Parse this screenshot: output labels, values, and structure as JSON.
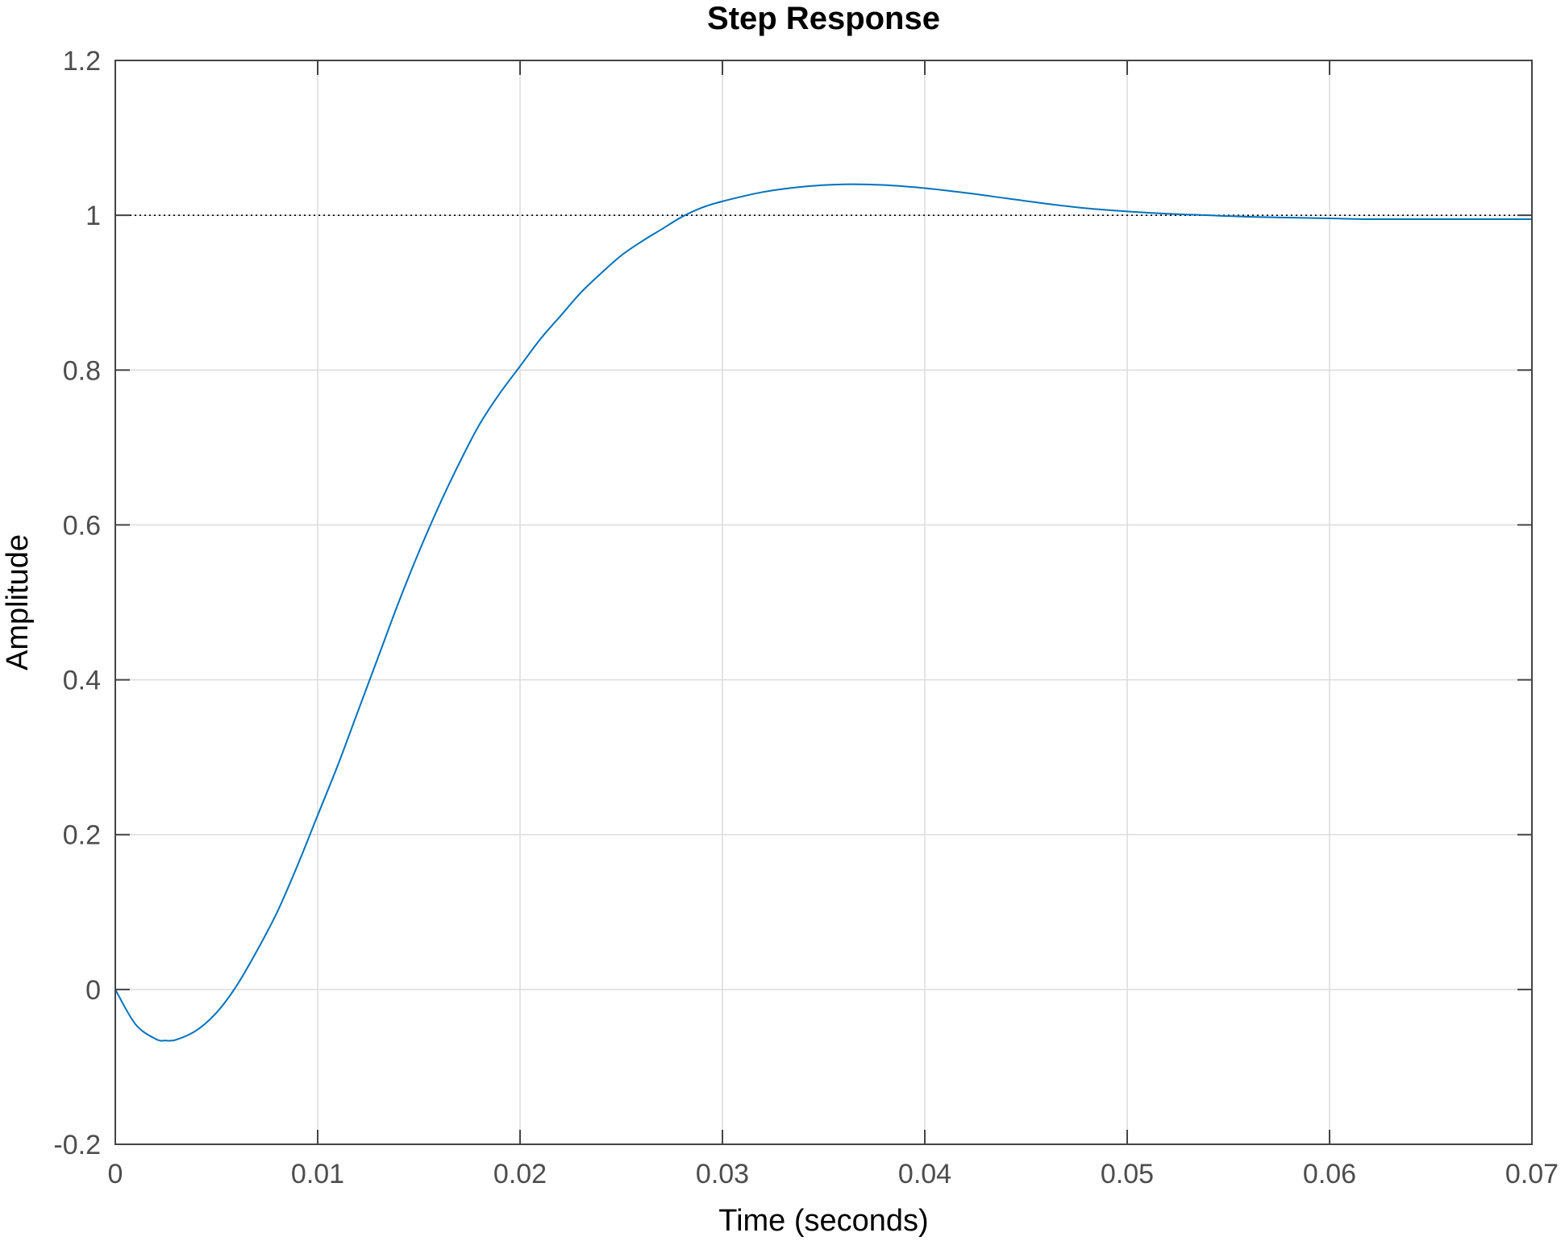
{
  "chart_data": {
    "type": "line",
    "title": "Step Response",
    "xlabel": "Time (seconds)",
    "ylabel": "Amplitude",
    "xlim": [
      0,
      0.07
    ],
    "ylim": [
      -0.2,
      1.2
    ],
    "xticks": [
      0,
      0.01,
      0.02,
      0.03,
      0.04,
      0.05,
      0.06,
      0.07
    ],
    "xtick_labels": [
      "0",
      "0.01",
      "0.02",
      "0.03",
      "0.04",
      "0.05",
      "0.06",
      "0.07"
    ],
    "yticks": [
      -0.2,
      0,
      0.2,
      0.4,
      0.6,
      0.8,
      1,
      1.2
    ],
    "ytick_labels": [
      "-0.2",
      "0",
      "0.2",
      "0.4",
      "0.6",
      "0.8",
      "1",
      "1.2"
    ],
    "grid": true,
    "reference_line": {
      "y": 1,
      "style": "dotted",
      "color": "#000000"
    },
    "series": [
      {
        "color": "#0072bd",
        "x": [
          0,
          0.001,
          0.002,
          0.0025,
          0.003,
          0.004,
          0.005,
          0.006,
          0.007,
          0.008,
          0.009,
          0.01,
          0.011,
          0.012,
          0.013,
          0.014,
          0.015,
          0.016,
          0.017,
          0.018,
          0.019,
          0.02,
          0.021,
          0.022,
          0.023,
          0.024,
          0.025,
          0.026,
          0.027,
          0.028,
          0.029,
          0.03,
          0.032,
          0.034,
          0.036,
          0.038,
          0.04,
          0.042,
          0.044,
          0.046,
          0.048,
          0.05,
          0.052,
          0.054,
          0.056,
          0.058,
          0.06,
          0.062,
          0.064,
          0.066,
          0.068,
          0.07
        ],
        "y": [
          0,
          -0.045,
          -0.064,
          -0.066,
          -0.065,
          -0.053,
          -0.03,
          0.005,
          0.05,
          0.1,
          0.16,
          0.225,
          0.29,
          0.36,
          0.43,
          0.5,
          0.565,
          0.625,
          0.68,
          0.73,
          0.77,
          0.805,
          0.84,
          0.87,
          0.9,
          0.925,
          0.948,
          0.966,
          0.982,
          0.998,
          1.01,
          1.018,
          1.03,
          1.037,
          1.04,
          1.039,
          1.035,
          1.029,
          1.022,
          1.015,
          1.009,
          1.005,
          1.002,
          1.0,
          0.998,
          0.997,
          0.996,
          0.995,
          0.995,
          0.995,
          0.995,
          0.995
        ]
      }
    ]
  }
}
